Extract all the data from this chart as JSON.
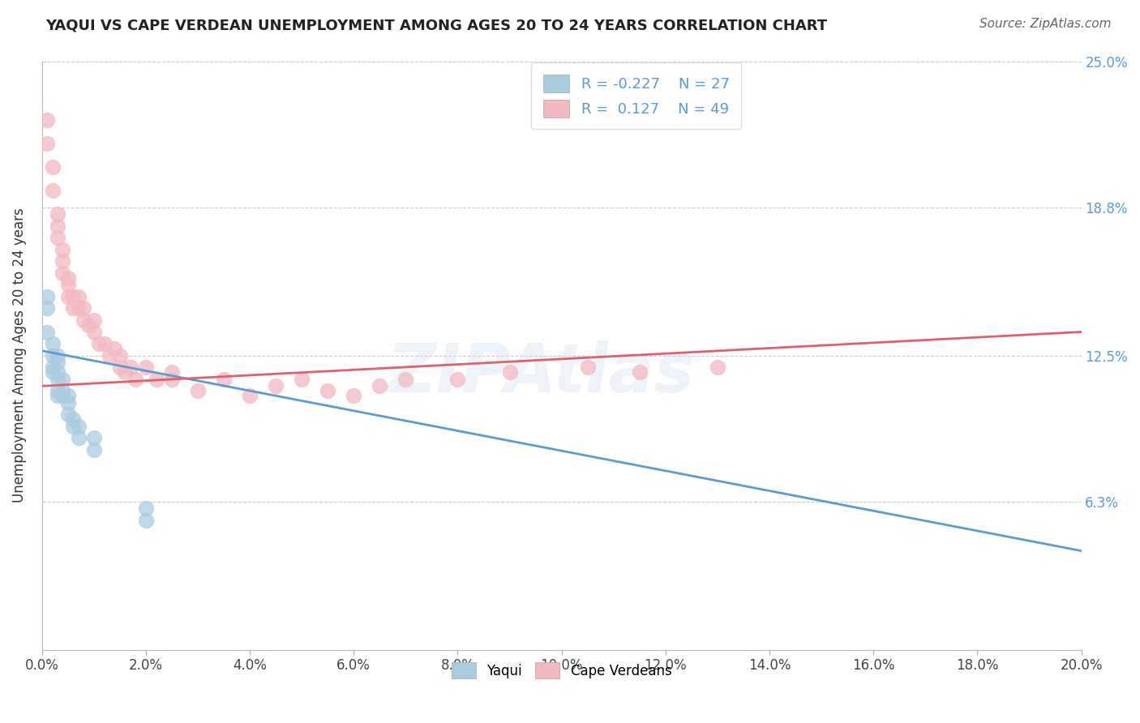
{
  "title": "YAQUI VS CAPE VERDEAN UNEMPLOYMENT AMONG AGES 20 TO 24 YEARS CORRELATION CHART",
  "source": "Source: ZipAtlas.com",
  "ylabel": "Unemployment Among Ages 20 to 24 years",
  "xlim": [
    0.0,
    0.2
  ],
  "ylim": [
    0.0,
    0.25
  ],
  "yticks": [
    0.0,
    0.063,
    0.125,
    0.188,
    0.25
  ],
  "ytick_labels": [
    "",
    "6.3%",
    "12.5%",
    "18.8%",
    "25.0%"
  ],
  "xtick_labels": [
    "0.0%",
    "2.0%",
    "4.0%",
    "6.0%",
    "8.0%",
    "10.0%",
    "12.0%",
    "14.0%",
    "16.0%",
    "18.0%",
    "20.0%"
  ],
  "yaqui_R": -0.227,
  "yaqui_N": 27,
  "capeverdean_R": 0.127,
  "capeverdean_N": 49,
  "yaqui_color": "#a8cce0",
  "capeverdean_color": "#f4b8c1",
  "yaqui_line_color": "#5b9bd5",
  "capeverdean_line_color": "#e06070",
  "background_color": "#ffffff",
  "grid_color": "#cccccc",
  "title_color": "#222222",
  "source_color": "#666666",
  "watermark": "ZIPAtlas",
  "yaqui_x": [
    0.001,
    0.001,
    0.001,
    0.002,
    0.002,
    0.002,
    0.002,
    0.003,
    0.003,
    0.003,
    0.003,
    0.003,
    0.003,
    0.004,
    0.004,
    0.004,
    0.005,
    0.005,
    0.005,
    0.006,
    0.006,
    0.007,
    0.007,
    0.01,
    0.01,
    0.02,
    0.02
  ],
  "yaqui_y": [
    0.135,
    0.145,
    0.15,
    0.125,
    0.13,
    0.118,
    0.12,
    0.125,
    0.122,
    0.118,
    0.115,
    0.11,
    0.108,
    0.108,
    0.11,
    0.115,
    0.1,
    0.105,
    0.108,
    0.095,
    0.098,
    0.09,
    0.095,
    0.085,
    0.09,
    0.055,
    0.06
  ],
  "capeverdean_x": [
    0.001,
    0.001,
    0.002,
    0.002,
    0.003,
    0.003,
    0.003,
    0.004,
    0.004,
    0.004,
    0.005,
    0.005,
    0.005,
    0.006,
    0.006,
    0.007,
    0.007,
    0.008,
    0.008,
    0.009,
    0.01,
    0.01,
    0.011,
    0.012,
    0.013,
    0.014,
    0.015,
    0.015,
    0.016,
    0.017,
    0.018,
    0.02,
    0.022,
    0.025,
    0.025,
    0.03,
    0.035,
    0.04,
    0.045,
    0.05,
    0.055,
    0.06,
    0.065,
    0.07,
    0.08,
    0.09,
    0.105,
    0.115,
    0.13
  ],
  "capeverdean_y": [
    0.215,
    0.225,
    0.195,
    0.205,
    0.185,
    0.175,
    0.18,
    0.165,
    0.17,
    0.16,
    0.155,
    0.15,
    0.158,
    0.15,
    0.145,
    0.145,
    0.15,
    0.14,
    0.145,
    0.138,
    0.135,
    0.14,
    0.13,
    0.13,
    0.125,
    0.128,
    0.12,
    0.125,
    0.118,
    0.12,
    0.115,
    0.12,
    0.115,
    0.115,
    0.118,
    0.11,
    0.115,
    0.108,
    0.112,
    0.115,
    0.11,
    0.108,
    0.112,
    0.115,
    0.115,
    0.118,
    0.12,
    0.118,
    0.12
  ],
  "yaqui_trendline_x": [
    0.0,
    0.2
  ],
  "yaqui_trendline_y": [
    0.127,
    0.042
  ],
  "capeverdean_trendline_x": [
    0.0,
    0.2
  ],
  "capeverdean_trendline_y": [
    0.112,
    0.135
  ]
}
